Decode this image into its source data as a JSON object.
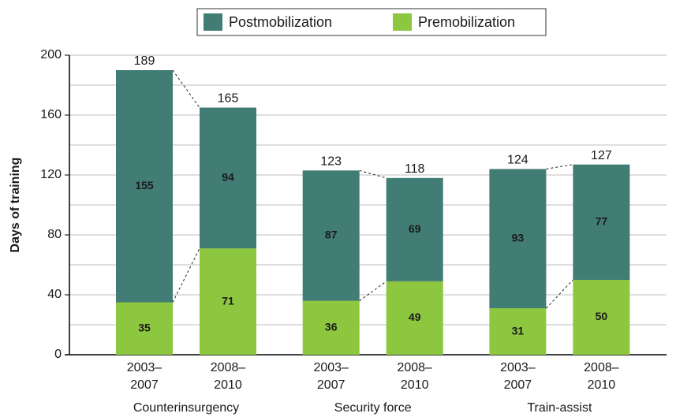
{
  "chart_data": {
    "type": "stacked_bar",
    "y_label": "Days of training",
    "groups": [
      "Counterinsurgency",
      "Security force",
      "Train-assist"
    ],
    "categories": [
      [
        "2003–",
        "2007"
      ],
      [
        "2008–",
        "2010"
      ],
      [
        "2003–",
        "2007"
      ],
      [
        "2008–",
        "2010"
      ],
      [
        "2003–",
        "2007"
      ],
      [
        "2008–",
        "2010"
      ]
    ],
    "series": [
      {
        "name": "Premobilization",
        "color": "#8dc63f",
        "label_color": "#1a1a1a",
        "values": [
          35,
          71,
          36,
          49,
          31,
          50
        ]
      },
      {
        "name": "Postmobilization",
        "color": "#417d74",
        "label_color": "#ffffff",
        "values": [
          155,
          94,
          87,
          69,
          93,
          77
        ]
      }
    ],
    "legend_order": [
      1,
      0
    ],
    "totals": [
      189,
      165,
      123,
      118,
      124,
      127
    ],
    "ylim": [
      0,
      200
    ],
    "yticks": [
      0,
      40,
      80,
      120,
      160,
      200
    ],
    "minor_yticks": [
      20,
      60,
      100,
      140,
      180
    ],
    "grid": true
  }
}
